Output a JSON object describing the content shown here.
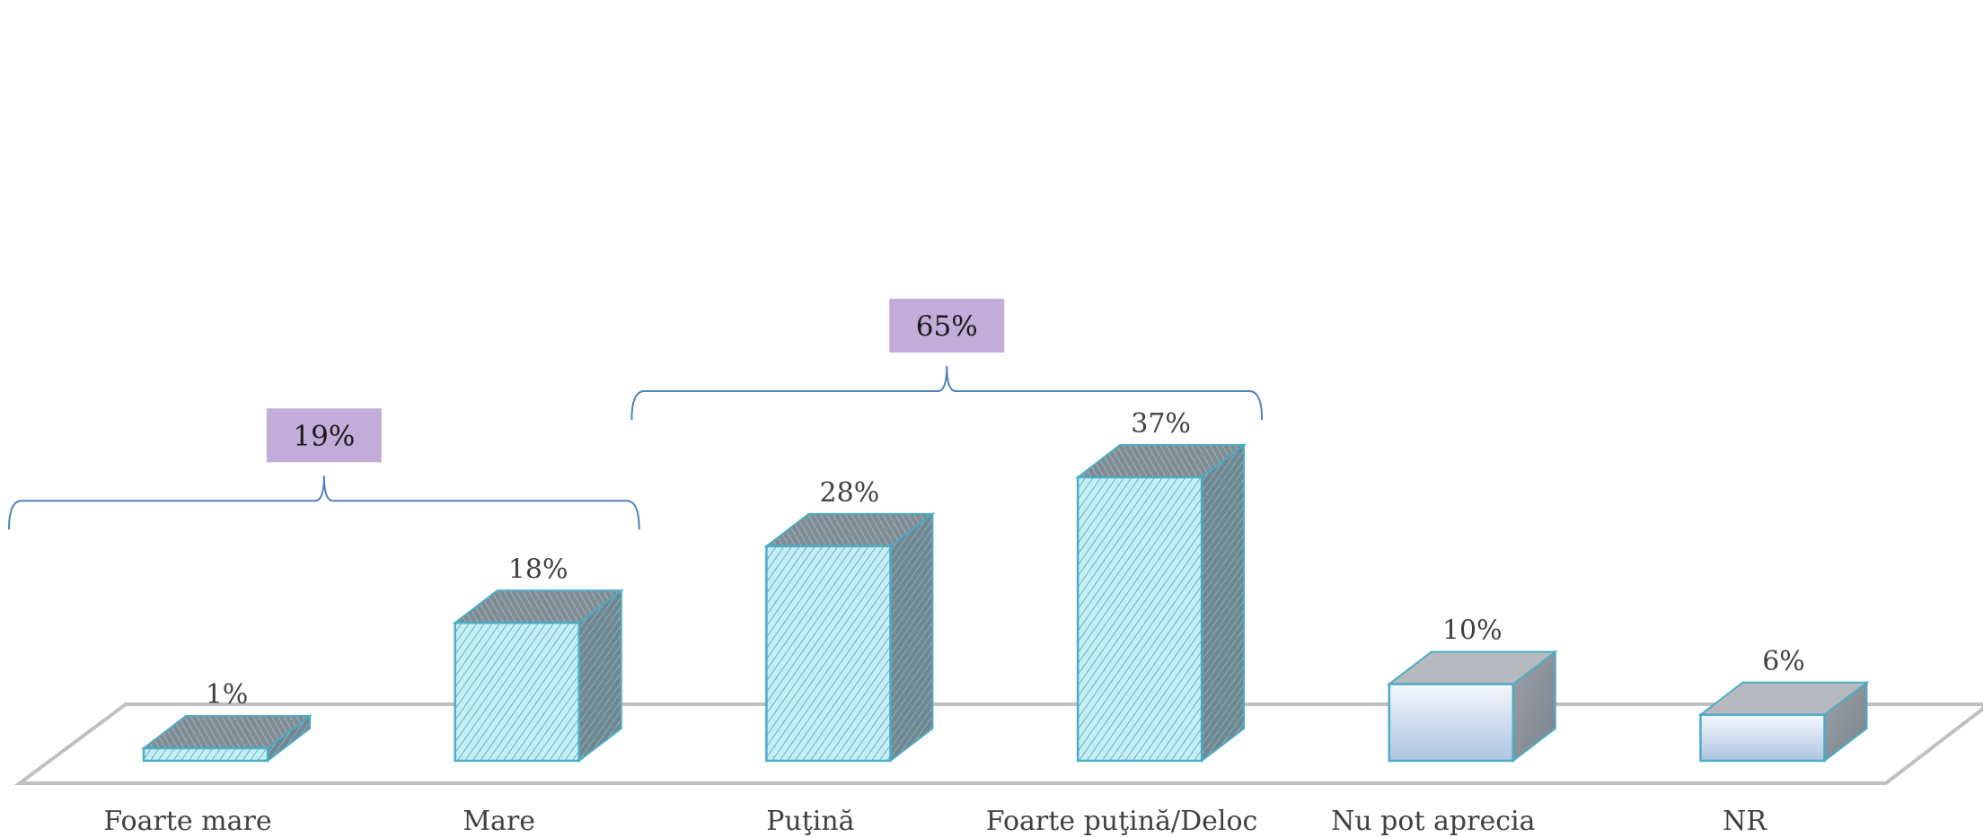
{
  "chart_data": {
    "type": "bar",
    "title": "",
    "xlabel": "",
    "ylabel": "",
    "ylim": [
      0,
      40
    ],
    "grid": false,
    "legend": "none",
    "categories": [
      "Foarte mare",
      "Mare",
      "Puţină",
      "Foarte puţină/Deloc",
      "Nu pot aprecia",
      "NR"
    ],
    "values": [
      1,
      18,
      28,
      37,
      10,
      6
    ],
    "value_labels": [
      "1%",
      "18%",
      "28%",
      "37%",
      "10%",
      "6%"
    ],
    "bar_styles": [
      "hatched",
      "hatched",
      "hatched",
      "hatched",
      "gradient",
      "gradient"
    ],
    "groups": [
      {
        "label": "19%",
        "from_index": 0,
        "to_index": 1
      },
      {
        "label": "65%",
        "from_index": 2,
        "to_index": 3
      }
    ],
    "colors": {
      "hatch_front": "#c8eef5",
      "hatch_line": "#5fb4c6",
      "outline": "#4bacc6",
      "top_dark": "#7f8c94",
      "gradient_top": "#f4f8fc",
      "gradient_bottom": "#adc4e2",
      "gray_top": "#b6b9bd",
      "gray_side": "#8b939b",
      "floor": "#c0c0c0",
      "brace": "#4f81bd",
      "group_box": "#c3acd9"
    }
  }
}
